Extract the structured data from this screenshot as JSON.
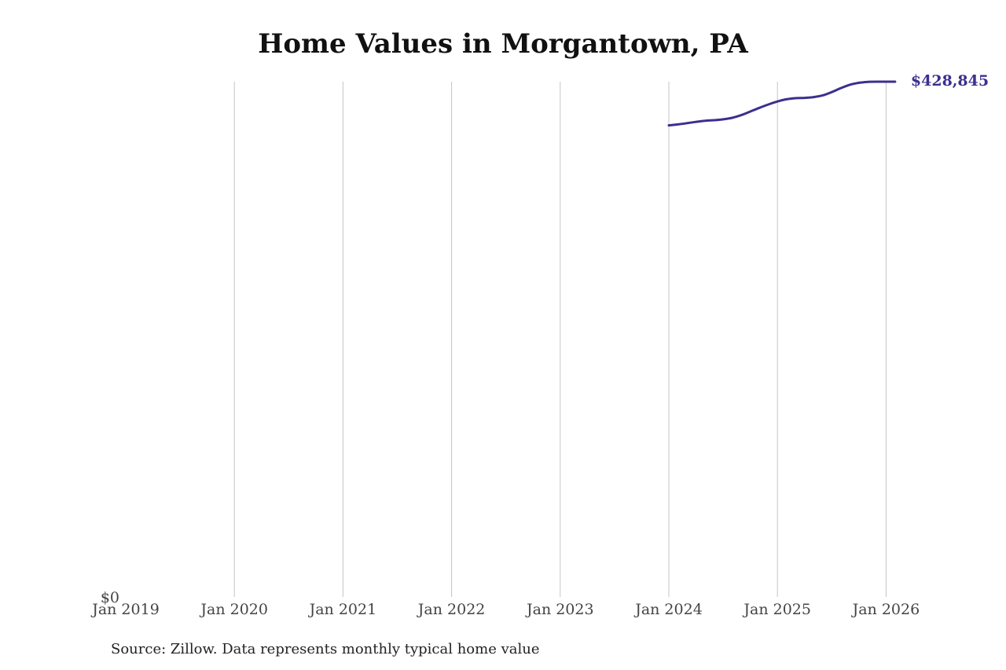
{
  "chart_data": {
    "type": "line",
    "title": "Home Values in Morgantown, PA",
    "x_tick_labels": [
      "Jan 2019",
      "Jan 2020",
      "Jan 2021",
      "Jan 2022",
      "Jan 2023",
      "Jan 2024",
      "Jan 2025",
      "Jan 2026"
    ],
    "y_tick_labels": [
      "$0"
    ],
    "ylim": [
      0,
      428845
    ],
    "grid": "vertical",
    "series": [
      {
        "color": "#3b2f8f",
        "x": [
          "2024-01",
          "2024-02",
          "2024-03",
          "2024-04",
          "2024-05",
          "2024-06",
          "2024-07",
          "2024-08",
          "2024-09",
          "2024-10",
          "2024-11",
          "2024-12",
          "2025-01",
          "2025-02",
          "2025-03",
          "2025-04",
          "2025-05",
          "2025-06",
          "2025-07",
          "2025-08",
          "2025-09",
          "2025-10",
          "2025-11",
          "2025-12",
          "2026-01",
          "2026-02"
        ],
        "y": [
          392500,
          393300,
          394300,
          395400,
          396300,
          396800,
          397500,
          398800,
          401000,
          404000,
          407100,
          409900,
          412400,
          414200,
          415100,
          415400,
          416000,
          417500,
          420200,
          423500,
          426300,
          427900,
          428700,
          428850,
          428845,
          428845
        ]
      }
    ],
    "end_label": "$428,845",
    "source": "Source: Zillow. Data represents monthly typical home value"
  }
}
